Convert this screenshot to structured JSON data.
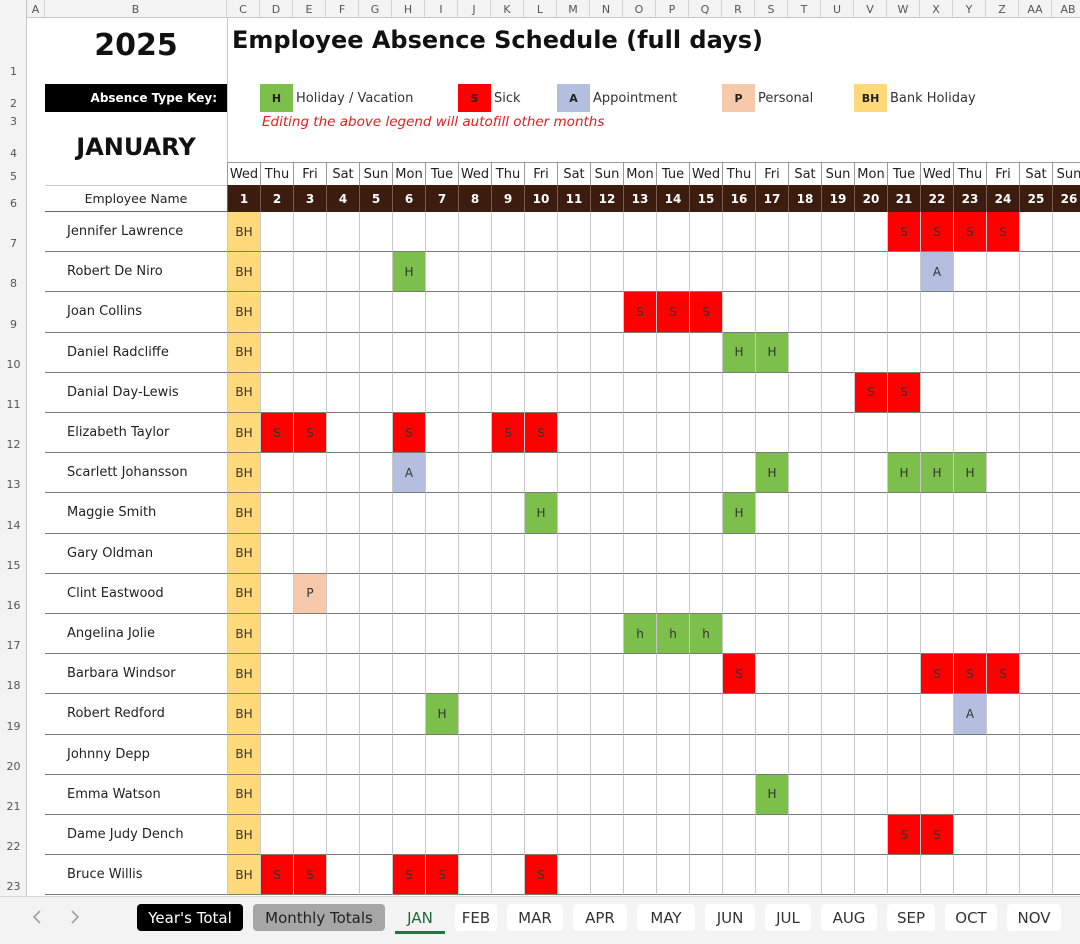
{
  "column_letters": [
    "A",
    "B",
    "C",
    "D",
    "E",
    "F",
    "G",
    "H",
    "I",
    "J",
    "K",
    "L",
    "M",
    "N",
    "O",
    "P",
    "Q",
    "R",
    "S",
    "T",
    "U",
    "V",
    "W",
    "X",
    "Y",
    "Z",
    "AA",
    "AB"
  ],
  "row_numbers": [
    1,
    2,
    3,
    4,
    5,
    6,
    7,
    8,
    9,
    10,
    11,
    12,
    13,
    14,
    15,
    16,
    17,
    18,
    19,
    20,
    21,
    22,
    23
  ],
  "year": "2025",
  "title": "Employee Absence Schedule (full days)",
  "legend_label": "Absence Type Key:",
  "legend": [
    {
      "code": "H",
      "label": "Holiday / Vacation",
      "color": "#7cc04b"
    },
    {
      "code": "S",
      "label": "Sick",
      "color": "#ff0000"
    },
    {
      "code": "A",
      "label": "Appointment",
      "color": "#b4bfe0"
    },
    {
      "code": "P",
      "label": "Personal",
      "color": "#f6c9aa"
    },
    {
      "code": "BH",
      "label": "Bank Holiday",
      "color": "#ffd97a"
    }
  ],
  "legend_note": "Editing the above legend will autofill other months",
  "month": "JANUARY",
  "name_header": "Employee Name",
  "weekdays": [
    "Wed",
    "Thu",
    "Fri",
    "Sat",
    "Sun",
    "Mon",
    "Tue",
    "Wed",
    "Thu",
    "Fri",
    "Sat",
    "Sun",
    "Mon",
    "Tue",
    "Wed",
    "Thu",
    "Fri",
    "Sat",
    "Sun",
    "Mon",
    "Tue",
    "Wed",
    "Thu",
    "Fri",
    "Sat",
    "Sun"
  ],
  "days": [
    1,
    2,
    3,
    4,
    5,
    6,
    7,
    8,
    9,
    10,
    11,
    12,
    13,
    14,
    15,
    16,
    17,
    18,
    19,
    20,
    21,
    22,
    23,
    24,
    25,
    26
  ],
  "rows": [
    {
      "name": "Jennifer Lawrence",
      "cells": [
        "BH",
        null,
        null,
        null,
        null,
        null,
        null,
        null,
        null,
        null,
        null,
        null,
        null,
        null,
        null,
        null,
        null,
        null,
        null,
        null,
        "S",
        "S",
        "S",
        "S",
        null,
        null
      ]
    },
    {
      "name": "Robert De Niro",
      "cells": [
        "BH",
        null,
        null,
        null,
        null,
        "H",
        null,
        null,
        null,
        null,
        null,
        null,
        null,
        null,
        null,
        null,
        null,
        null,
        null,
        null,
        null,
        "A",
        null,
        null,
        null,
        null
      ]
    },
    {
      "name": "Joan Collins",
      "cells": [
        "BH",
        null,
        null,
        null,
        null,
        null,
        null,
        null,
        null,
        null,
        null,
        null,
        "S",
        "S",
        "S",
        null,
        null,
        null,
        null,
        null,
        null,
        null,
        null,
        null,
        null,
        null
      ]
    },
    {
      "name": "Daniel Radcliffe",
      "cells": [
        "BH",
        null,
        null,
        null,
        null,
        null,
        null,
        null,
        null,
        null,
        null,
        null,
        null,
        null,
        null,
        "H",
        "H",
        null,
        null,
        null,
        null,
        null,
        null,
        null,
        null,
        null
      ]
    },
    {
      "name": "Danial Day-Lewis",
      "cells": [
        "BH",
        null,
        null,
        null,
        null,
        null,
        null,
        null,
        null,
        null,
        null,
        null,
        null,
        null,
        null,
        null,
        null,
        null,
        null,
        "S",
        "S",
        null,
        null,
        null,
        null,
        null
      ]
    },
    {
      "name": "Elizabeth Taylor",
      "cells": [
        "BH",
        "S",
        "S",
        null,
        null,
        "S",
        null,
        null,
        "S",
        "S",
        null,
        null,
        null,
        null,
        null,
        null,
        null,
        null,
        null,
        null,
        null,
        null,
        null,
        null,
        null,
        null
      ]
    },
    {
      "name": "Scarlett Johansson",
      "cells": [
        "BH",
        null,
        null,
        null,
        null,
        "A",
        null,
        null,
        null,
        null,
        null,
        null,
        null,
        null,
        null,
        null,
        "H",
        null,
        null,
        null,
        "H",
        "H",
        "H",
        null,
        null,
        null
      ]
    },
    {
      "name": "Maggie Smith",
      "cells": [
        "BH",
        null,
        null,
        null,
        null,
        null,
        null,
        null,
        null,
        "H",
        null,
        null,
        null,
        null,
        null,
        "H",
        null,
        null,
        null,
        null,
        null,
        null,
        null,
        null,
        null,
        null
      ]
    },
    {
      "name": "Gary Oldman",
      "cells": [
        "BH",
        null,
        null,
        null,
        null,
        null,
        null,
        null,
        null,
        null,
        null,
        null,
        null,
        null,
        null,
        null,
        null,
        null,
        null,
        null,
        null,
        null,
        null,
        null,
        null,
        null
      ]
    },
    {
      "name": "Clint Eastwood",
      "cells": [
        "BH",
        null,
        "P",
        null,
        null,
        null,
        null,
        null,
        null,
        null,
        null,
        null,
        null,
        null,
        null,
        null,
        null,
        null,
        null,
        null,
        null,
        null,
        null,
        null,
        null,
        null
      ]
    },
    {
      "name": "Angelina Jolie",
      "cells": [
        "BH",
        null,
        null,
        null,
        null,
        null,
        null,
        null,
        null,
        null,
        null,
        null,
        "h",
        "h",
        "h",
        null,
        null,
        null,
        null,
        null,
        null,
        null,
        null,
        null,
        null,
        null
      ]
    },
    {
      "name": "Barbara Windsor",
      "cells": [
        "BH",
        null,
        null,
        null,
        null,
        null,
        null,
        null,
        null,
        null,
        null,
        null,
        null,
        null,
        null,
        "S",
        null,
        null,
        null,
        null,
        null,
        "S",
        "S",
        "S",
        null,
        null
      ]
    },
    {
      "name": "Robert Redford",
      "cells": [
        "BH",
        null,
        null,
        null,
        null,
        null,
        "H",
        null,
        null,
        null,
        null,
        null,
        null,
        null,
        null,
        null,
        null,
        null,
        null,
        null,
        null,
        null,
        "A",
        null,
        null,
        null
      ]
    },
    {
      "name": "Johnny Depp",
      "cells": [
        "BH",
        null,
        null,
        null,
        null,
        null,
        null,
        null,
        null,
        null,
        null,
        null,
        null,
        null,
        null,
        null,
        null,
        null,
        null,
        null,
        null,
        null,
        null,
        null,
        null,
        null
      ]
    },
    {
      "name": "Emma Watson",
      "cells": [
        "BH",
        null,
        null,
        null,
        null,
        null,
        null,
        null,
        null,
        null,
        null,
        null,
        null,
        null,
        null,
        null,
        "H",
        null,
        null,
        null,
        null,
        null,
        null,
        null,
        null,
        null
      ]
    },
    {
      "name": "Dame Judy Dench",
      "cells": [
        "BH",
        null,
        null,
        null,
        null,
        null,
        null,
        null,
        null,
        null,
        null,
        null,
        null,
        null,
        null,
        null,
        null,
        null,
        null,
        null,
        "S",
        "S",
        null,
        null,
        null,
        null
      ]
    },
    {
      "name": "Bruce Willis",
      "cells": [
        "BH",
        "S",
        "S",
        null,
        null,
        "S",
        "S",
        null,
        null,
        "S",
        null,
        null,
        null,
        null,
        null,
        null,
        null,
        null,
        null,
        null,
        null,
        null,
        null,
        null,
        null,
        null
      ]
    }
  ],
  "tabs": [
    {
      "label": "Year's Total",
      "background": "#000000",
      "text_color": "#ffffff"
    },
    {
      "label": "Monthly Totals",
      "background": "#a6a6a6",
      "text_color": "#222222"
    },
    {
      "label": "JAN",
      "active": true
    },
    {
      "label": "FEB"
    },
    {
      "label": "MAR"
    },
    {
      "label": "APR"
    },
    {
      "label": "MAY"
    },
    {
      "label": "JUN"
    },
    {
      "label": "JUL"
    },
    {
      "label": "AUG"
    },
    {
      "label": "SEP"
    },
    {
      "label": "OCT"
    },
    {
      "label": "NOV"
    }
  ]
}
